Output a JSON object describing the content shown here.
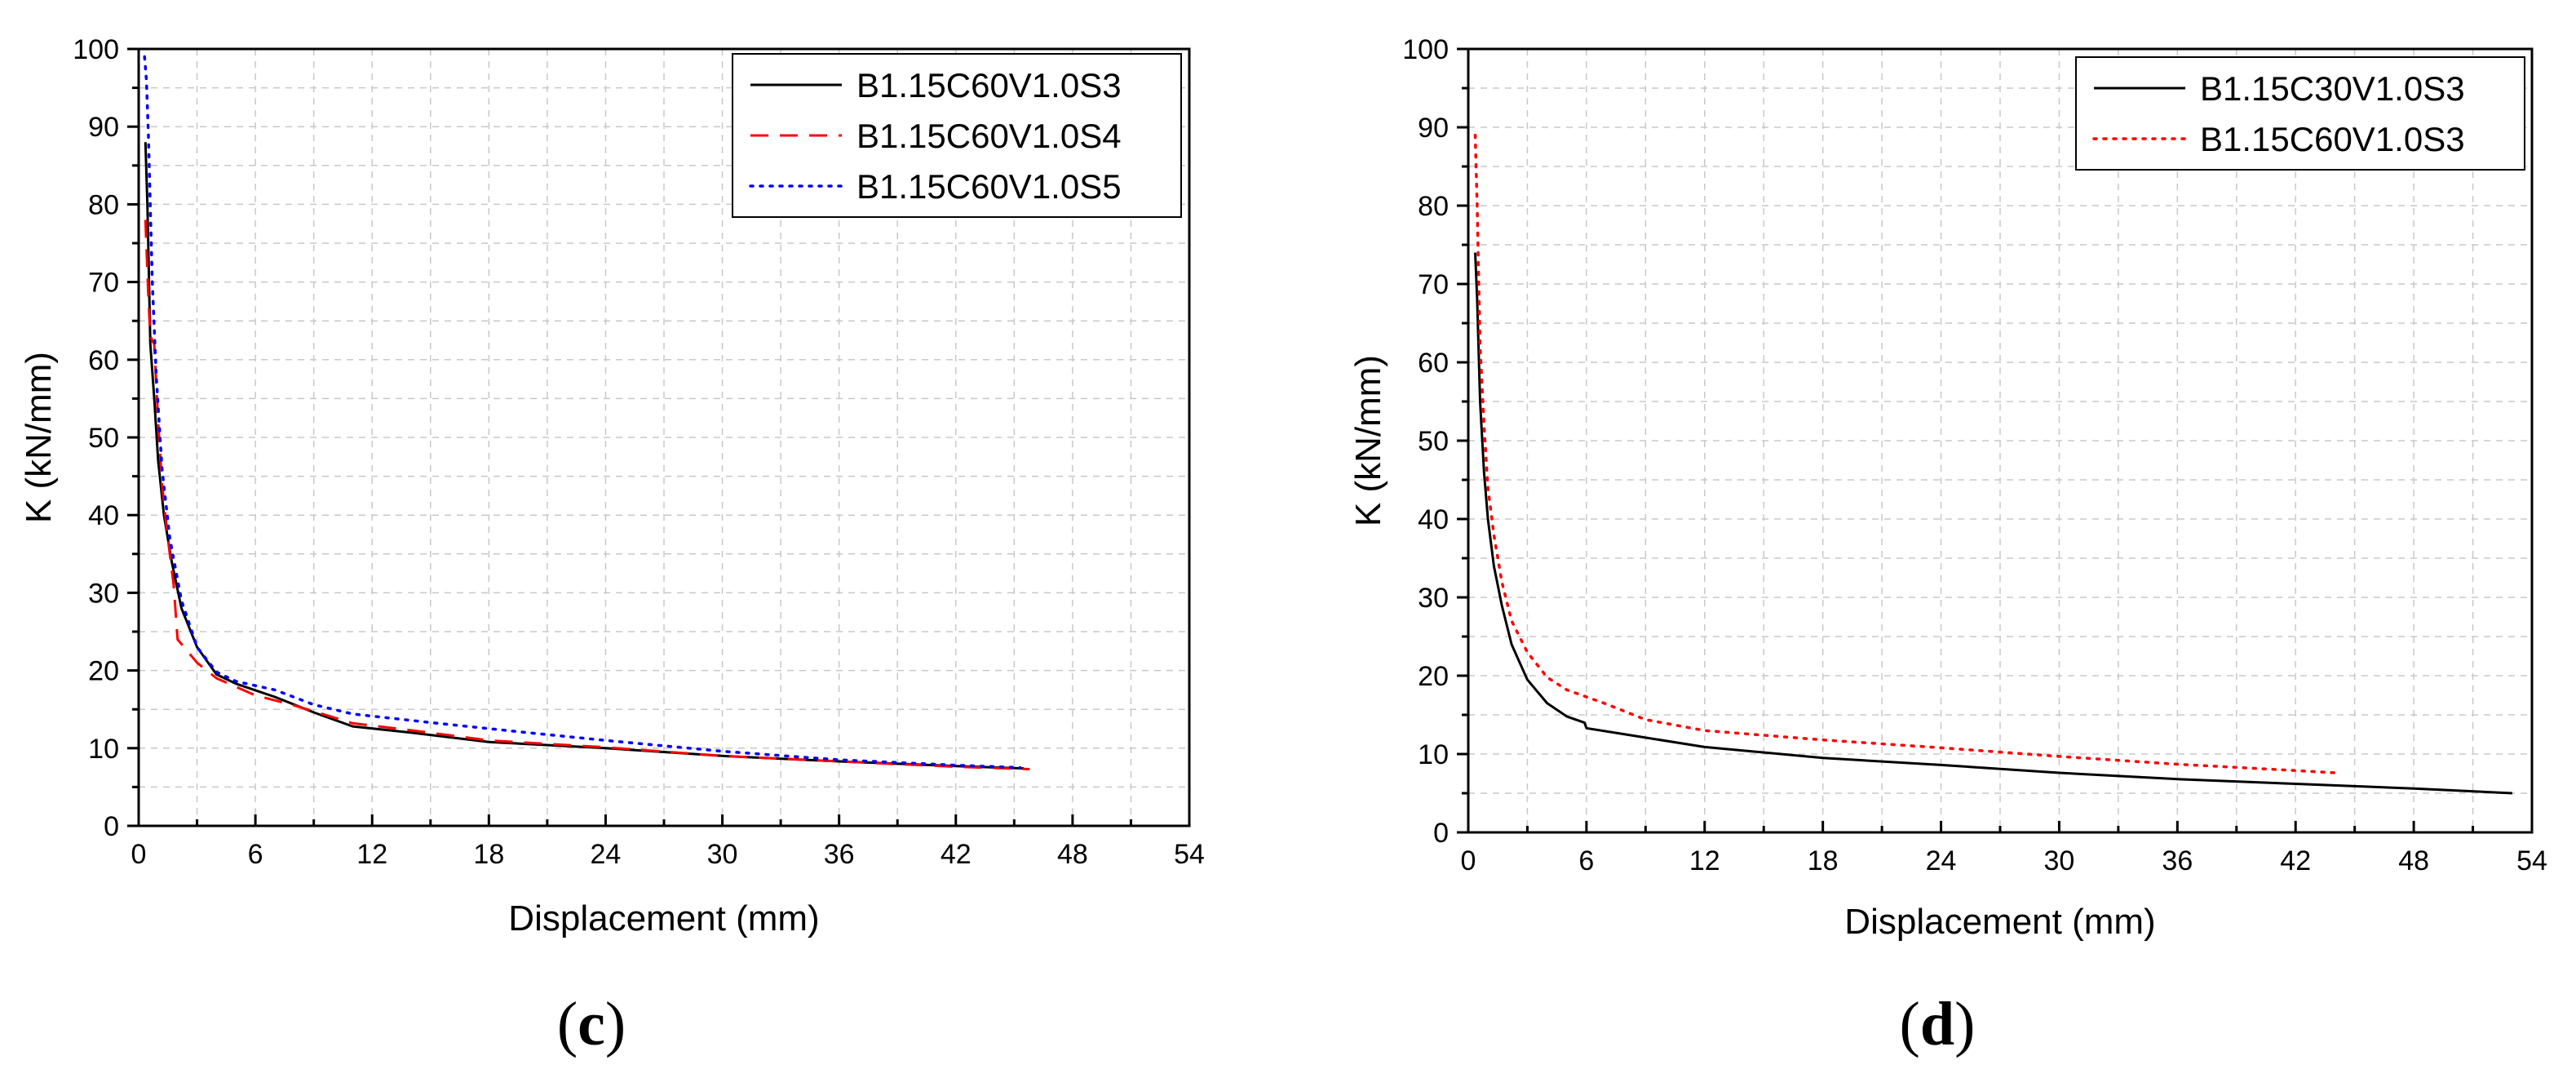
{
  "panels": [
    {
      "panel_label": "(c)",
      "letter": "c"
    },
    {
      "panel_label": "(d)",
      "letter": "d"
    }
  ],
  "chart_data": [
    {
      "type": "line",
      "title": "",
      "xlabel": "Displacement (mm)",
      "ylabel": "K (kN/mm)",
      "xlim": [
        0,
        54
      ],
      "ylim": [
        0,
        100
      ],
      "xticks": [
        0,
        6,
        12,
        18,
        24,
        30,
        36,
        42,
        48,
        54
      ],
      "yticks": [
        0,
        10,
        20,
        30,
        40,
        50,
        60,
        70,
        80,
        90,
        100
      ],
      "grid": true,
      "legend_position": "top-right",
      "series": [
        {
          "name": "B1.15C60V1.0S3",
          "color": "#000000",
          "style": "solid",
          "points": [
            [
              0.35,
              88
            ],
            [
              0.45,
              80
            ],
            [
              0.6,
              62
            ],
            [
              0.8,
              55
            ],
            [
              1.0,
              47
            ],
            [
              1.3,
              40
            ],
            [
              1.7,
              34
            ],
            [
              2.2,
              28
            ],
            [
              3.0,
              23
            ],
            [
              4.0,
              19.5
            ],
            [
              5.0,
              18.3
            ],
            [
              7.0,
              16.6
            ],
            [
              9.0,
              14.6
            ],
            [
              11.0,
              12.8
            ],
            [
              14.0,
              12.0
            ],
            [
              18.0,
              10.8
            ],
            [
              24.0,
              10.0
            ],
            [
              30.0,
              9.0
            ],
            [
              36.0,
              8.3
            ],
            [
              42.0,
              7.7
            ],
            [
              45.5,
              7.4
            ]
          ]
        },
        {
          "name": "B1.15C60V1.0S4",
          "color": "#ff0000",
          "style": "dashed",
          "points": [
            [
              0.35,
              78
            ],
            [
              0.5,
              68
            ],
            [
              0.6,
              63
            ],
            [
              0.8,
              62
            ],
            [
              1.0,
              52
            ],
            [
              1.2,
              44
            ],
            [
              1.5,
              37
            ],
            [
              1.8,
              31
            ],
            [
              2.0,
              24
            ],
            [
              3.0,
              21
            ],
            [
              4.0,
              19
            ],
            [
              6.0,
              16.8
            ],
            [
              8.0,
              15.5
            ],
            [
              11.0,
              13.2
            ],
            [
              14.0,
              12.3
            ],
            [
              18.0,
              11.0
            ],
            [
              24.0,
              10.1
            ],
            [
              30.0,
              9.0
            ],
            [
              36.0,
              8.3
            ],
            [
              42.0,
              7.6
            ],
            [
              45.8,
              7.3
            ]
          ]
        },
        {
          "name": "B1.15C60V1.0S5",
          "color": "#0000ff",
          "style": "dotted",
          "points": [
            [
              0.3,
              99
            ],
            [
              0.4,
              96
            ],
            [
              0.5,
              89
            ],
            [
              0.7,
              70
            ],
            [
              0.9,
              58
            ],
            [
              1.2,
              46
            ],
            [
              1.6,
              37
            ],
            [
              2.2,
              29
            ],
            [
              3.0,
              23
            ],
            [
              4.0,
              19.8
            ],
            [
              5.0,
              18.6
            ],
            [
              7.0,
              17.5
            ],
            [
              9.0,
              15.6
            ],
            [
              11.0,
              14.4
            ],
            [
              15.0,
              13.3
            ],
            [
              20.0,
              12.0
            ],
            [
              24.0,
              11.0
            ],
            [
              30.0,
              9.6
            ],
            [
              36.0,
              8.5
            ],
            [
              42.0,
              7.8
            ],
            [
              45.3,
              7.5
            ]
          ]
        }
      ]
    },
    {
      "type": "line",
      "title": "",
      "xlabel": "Displacement (mm)",
      "ylabel": "K (kN/mm)",
      "xlim": [
        0,
        54
      ],
      "ylim": [
        0,
        100
      ],
      "xticks": [
        0,
        6,
        12,
        18,
        24,
        30,
        36,
        42,
        48,
        54
      ],
      "yticks": [
        0,
        10,
        20,
        30,
        40,
        50,
        60,
        70,
        80,
        90,
        100
      ],
      "grid": true,
      "legend_position": "top-right",
      "series": [
        {
          "name": "B1.15C30V1.0S3",
          "color": "#000000",
          "style": "solid",
          "points": [
            [
              0.35,
              74
            ],
            [
              0.45,
              68
            ],
            [
              0.6,
              55
            ],
            [
              0.8,
              46
            ],
            [
              1.0,
              40
            ],
            [
              1.3,
              34
            ],
            [
              1.7,
              29
            ],
            [
              2.2,
              24
            ],
            [
              3.0,
              19.5
            ],
            [
              4.0,
              16.5
            ],
            [
              5.0,
              14.8
            ],
            [
              5.9,
              14.0
            ],
            [
              6.0,
              13.3
            ],
            [
              8.0,
              12.5
            ],
            [
              12.0,
              10.9
            ],
            [
              18.0,
              9.5
            ],
            [
              24.0,
              8.6
            ],
            [
              30.0,
              7.6
            ],
            [
              36.0,
              6.8
            ],
            [
              42.0,
              6.2
            ],
            [
              48.0,
              5.6
            ],
            [
              53.0,
              5.0
            ]
          ]
        },
        {
          "name": "B1.15C60V1.0S3",
          "color": "#ff0000",
          "style": "dotted",
          "points": [
            [
              0.35,
              89
            ],
            [
              0.45,
              80
            ],
            [
              0.6,
              62
            ],
            [
              0.8,
              52
            ],
            [
              1.0,
              44
            ],
            [
              1.3,
              38
            ],
            [
              1.7,
              32
            ],
            [
              2.2,
              27
            ],
            [
              3.0,
              23
            ],
            [
              4.0,
              19.8
            ],
            [
              5.0,
              18.2
            ],
            [
              7.0,
              16.4
            ],
            [
              9.0,
              14.4
            ],
            [
              12.0,
              13.0
            ],
            [
              18.0,
              11.8
            ],
            [
              24.0,
              10.8
            ],
            [
              30.0,
              9.7
            ],
            [
              36.0,
              8.7
            ],
            [
              42.0,
              7.9
            ],
            [
              44.0,
              7.6
            ]
          ]
        }
      ]
    }
  ]
}
